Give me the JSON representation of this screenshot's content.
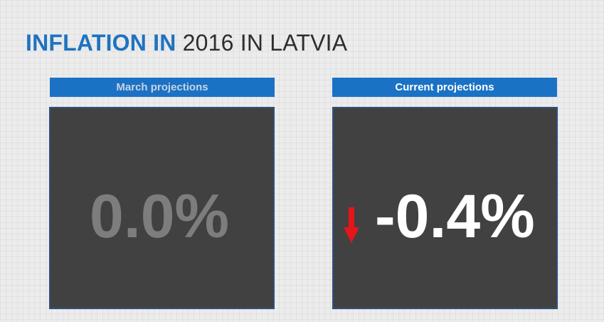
{
  "title": {
    "strong": "INFLATION IN",
    "light": "2016 IN LATVIA"
  },
  "left_panel": {
    "header": "March projections",
    "value": "0.0%"
  },
  "right_panel": {
    "header": "Current projections",
    "value": "-0.4%",
    "trend_icon": "down-arrow-icon",
    "trend_color": "#e8141b"
  },
  "colors": {
    "accent_blue": "#1b72c4",
    "panel_background": "#414141"
  }
}
